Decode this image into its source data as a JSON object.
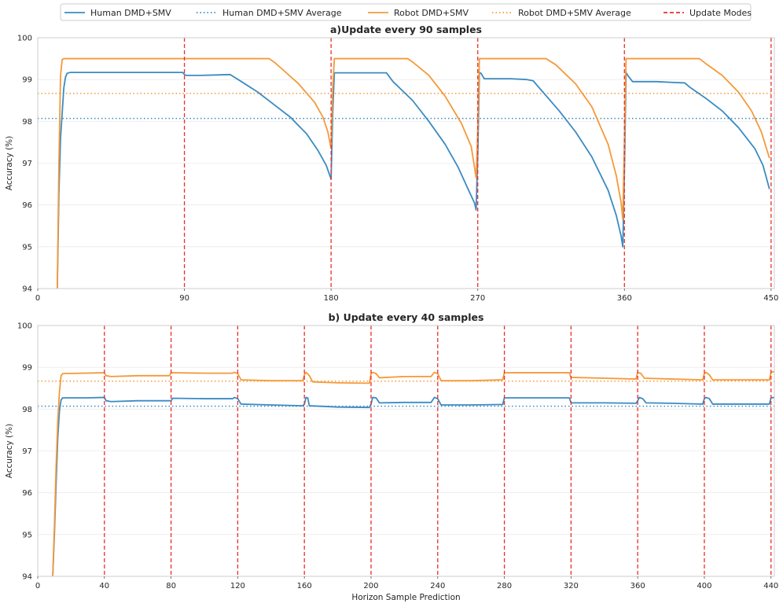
{
  "legend": [
    {
      "label": "Human DMD+SMV",
      "color": "#3b8bc2",
      "style": "solid"
    },
    {
      "label": "Human DMD+SMV Average",
      "color": "#3b8bc2",
      "style": "dotted"
    },
    {
      "label": "Robot DMD+SMV",
      "color": "#f5993a",
      "style": "solid"
    },
    {
      "label": "Robot DMD+SMV Average",
      "color": "#f5993a",
      "style": "dotted"
    },
    {
      "label": "Update Modes",
      "color": "#e8302a",
      "style": "dashed"
    }
  ],
  "chart_data": [
    {
      "type": "line",
      "title": "a)Update every 90 samples",
      "xlabel": "",
      "ylabel": "Accuracy (%)",
      "xlim": [
        0,
        452
      ],
      "ylim": [
        94,
        100
      ],
      "xticks": [
        0,
        90,
        180,
        270,
        360,
        450
      ],
      "yticks": [
        94,
        95,
        96,
        97,
        98,
        99,
        100
      ],
      "grid": "horizontal",
      "update_modes": [
        90,
        180,
        270,
        360,
        450
      ],
      "averages": {
        "human": 98.07,
        "robot": 98.67
      },
      "series": [
        {
          "name": "Human DMD+SMV",
          "points": [
            [
              12,
              94.0
            ],
            [
              13,
              96.3
            ],
            [
              14,
              97.6
            ],
            [
              15,
              98.2
            ],
            [
              16,
              98.8
            ],
            [
              17,
              99.05
            ],
            [
              18,
              99.15
            ],
            [
              20,
              99.17
            ],
            [
              50,
              99.17
            ],
            [
              89,
              99.17
            ],
            [
              90,
              99.12
            ],
            [
              91,
              99.1
            ],
            [
              100,
              99.1
            ],
            [
              110,
              99.11
            ],
            [
              118,
              99.12
            ],
            [
              125,
              98.95
            ],
            [
              135,
              98.7
            ],
            [
              145,
              98.4
            ],
            [
              155,
              98.1
            ],
            [
              165,
              97.7
            ],
            [
              172,
              97.3
            ],
            [
              177,
              96.95
            ],
            [
              180,
              96.62
            ],
            [
              181,
              98.2
            ],
            [
              182,
              99.16
            ],
            [
              200,
              99.16
            ],
            [
              214,
              99.16
            ],
            [
              218,
              98.95
            ],
            [
              230,
              98.5
            ],
            [
              240,
              98.0
            ],
            [
              250,
              97.45
            ],
            [
              258,
              96.9
            ],
            [
              265,
              96.3
            ],
            [
              268,
              96.05
            ],
            [
              269,
              95.88
            ],
            [
              270,
              97.2
            ],
            [
              271,
              99.17
            ],
            [
              272,
              99.15
            ],
            [
              274,
              99.02
            ],
            [
              290,
              99.02
            ],
            [
              300,
              99.0
            ],
            [
              304,
              98.97
            ],
            [
              310,
              98.7
            ],
            [
              320,
              98.25
            ],
            [
              330,
              97.75
            ],
            [
              340,
              97.15
            ],
            [
              350,
              96.35
            ],
            [
              355,
              95.75
            ],
            [
              358,
              95.25
            ],
            [
              359,
              95.0
            ],
            [
              360,
              96.8
            ],
            [
              361,
              99.17
            ],
            [
              362,
              99.1
            ],
            [
              365,
              98.95
            ],
            [
              380,
              98.95
            ],
            [
              390,
              98.93
            ],
            [
              397,
              98.92
            ],
            [
              400,
              98.82
            ],
            [
              410,
              98.55
            ],
            [
              420,
              98.25
            ],
            [
              430,
              97.85
            ],
            [
              440,
              97.35
            ],
            [
              445,
              96.95
            ],
            [
              449,
              96.38
            ]
          ]
        },
        {
          "name": "Robot DMD+SMV",
          "points": [
            [
              12,
              94.0
            ],
            [
              13,
              97.0
            ],
            [
              14,
              99.1
            ],
            [
              15,
              99.48
            ],
            [
              16,
              99.5
            ],
            [
              50,
              99.5
            ],
            [
              100,
              99.5
            ],
            [
              142,
              99.5
            ],
            [
              145,
              99.42
            ],
            [
              150,
              99.25
            ],
            [
              160,
              98.9
            ],
            [
              170,
              98.45
            ],
            [
              175,
              98.1
            ],
            [
              178,
              97.75
            ],
            [
              180,
              97.35
            ],
            [
              181,
              98.8
            ],
            [
              182,
              99.5
            ],
            [
              200,
              99.5
            ],
            [
              227,
              99.5
            ],
            [
              230,
              99.42
            ],
            [
              240,
              99.1
            ],
            [
              250,
              98.6
            ],
            [
              260,
              97.95
            ],
            [
              266,
              97.4
            ],
            [
              269,
              96.65
            ],
            [
              270,
              97.8
            ],
            [
              271,
              99.5
            ],
            [
              300,
              99.5
            ],
            [
              312,
              99.5
            ],
            [
              318,
              99.35
            ],
            [
              330,
              98.9
            ],
            [
              340,
              98.35
            ],
            [
              350,
              97.45
            ],
            [
              355,
              96.7
            ],
            [
              358,
              96.05
            ],
            [
              359,
              95.65
            ],
            [
              360,
              97.5
            ],
            [
              361,
              99.5
            ],
            [
              400,
              99.5
            ],
            [
              406,
              99.5
            ],
            [
              410,
              99.38
            ],
            [
              420,
              99.1
            ],
            [
              430,
              98.7
            ],
            [
              438,
              98.25
            ],
            [
              444,
              97.75
            ],
            [
              449,
              97.12
            ]
          ]
        }
      ]
    },
    {
      "type": "line",
      "title": "b) Update every 40 samples",
      "xlabel": "Horizon Sample Prediction",
      "ylabel": "Accuracy (%)",
      "xlim": [
        0,
        442
      ],
      "ylim": [
        94,
        100
      ],
      "xticks": [
        0,
        40,
        80,
        120,
        160,
        200,
        240,
        280,
        320,
        360,
        400,
        440
      ],
      "yticks": [
        94,
        95,
        96,
        97,
        98,
        99,
        100
      ],
      "grid": "horizontal",
      "update_modes": [
        40,
        80,
        120,
        160,
        200,
        240,
        280,
        320,
        360,
        400,
        440
      ],
      "averages": {
        "human": 98.07,
        "robot": 98.67
      },
      "series": [
        {
          "name": "Human DMD+SMV",
          "points": [
            [
              9,
              94.0
            ],
            [
              10,
              95.0
            ],
            [
              11,
              96.2
            ],
            [
              12,
              97.3
            ],
            [
              13,
              97.95
            ],
            [
              14,
              98.22
            ],
            [
              15,
              98.27
            ],
            [
              20,
              98.27
            ],
            [
              30,
              98.27
            ],
            [
              40,
              98.28
            ],
            [
              41,
              98.2
            ],
            [
              44,
              98.18
            ],
            [
              60,
              98.2
            ],
            [
              80,
              98.2
            ],
            [
              81,
              98.26
            ],
            [
              100,
              98.25
            ],
            [
              117,
              98.25
            ],
            [
              118,
              98.28
            ],
            [
              120,
              98.25
            ],
            [
              122,
              98.12
            ],
            [
              140,
              98.1
            ],
            [
              159,
              98.08
            ],
            [
              160,
              98.12
            ],
            [
              161,
              98.28
            ],
            [
              162,
              98.27
            ],
            [
              163,
              98.08
            ],
            [
              180,
              98.05
            ],
            [
              199,
              98.04
            ],
            [
              200,
              98.12
            ],
            [
              201,
              98.28
            ],
            [
              203,
              98.27
            ],
            [
              205,
              98.15
            ],
            [
              220,
              98.16
            ],
            [
              236,
              98.16
            ],
            [
              238,
              98.28
            ],
            [
              240,
              98.25
            ],
            [
              242,
              98.1
            ],
            [
              260,
              98.1
            ],
            [
              279,
              98.11
            ],
            [
              280,
              98.27
            ],
            [
              300,
              98.27
            ],
            [
              319,
              98.27
            ],
            [
              320,
              98.15
            ],
            [
              340,
              98.15
            ],
            [
              359,
              98.14
            ],
            [
              360,
              98.2
            ],
            [
              361,
              98.28
            ],
            [
              363,
              98.25
            ],
            [
              365,
              98.15
            ],
            [
              380,
              98.14
            ],
            [
              399,
              98.12
            ],
            [
              400,
              98.25
            ],
            [
              401,
              98.28
            ],
            [
              403,
              98.25
            ],
            [
              405,
              98.12
            ],
            [
              420,
              98.12
            ],
            [
              439,
              98.12
            ],
            [
              440,
              98.27
            ],
            [
              442,
              98.28
            ]
          ]
        },
        {
          "name": "Robot DMD+SMV",
          "points": [
            [
              9,
              94.0
            ],
            [
              10,
              95.2
            ],
            [
              11,
              96.6
            ],
            [
              12,
              97.7
            ],
            [
              13,
              98.4
            ],
            [
              14,
              98.8
            ],
            [
              15,
              98.85
            ],
            [
              40,
              98.87
            ],
            [
              41,
              98.8
            ],
            [
              44,
              98.78
            ],
            [
              60,
              98.8
            ],
            [
              79,
              98.8
            ],
            [
              80,
              98.87
            ],
            [
              100,
              98.86
            ],
            [
              117,
              98.86
            ],
            [
              118,
              98.88
            ],
            [
              120,
              98.85
            ],
            [
              122,
              98.7
            ],
            [
              140,
              98.68
            ],
            [
              159,
              98.68
            ],
            [
              160,
              98.82
            ],
            [
              161,
              98.88
            ],
            [
              163,
              98.8
            ],
            [
              165,
              98.65
            ],
            [
              180,
              98.63
            ],
            [
              199,
              98.62
            ],
            [
              200,
              98.85
            ],
            [
              201,
              98.88
            ],
            [
              203,
              98.85
            ],
            [
              205,
              98.75
            ],
            [
              220,
              98.78
            ],
            [
              236,
              98.78
            ],
            [
              238,
              98.88
            ],
            [
              240,
              98.85
            ],
            [
              242,
              98.68
            ],
            [
              260,
              98.68
            ],
            [
              279,
              98.7
            ],
            [
              280,
              98.87
            ],
            [
              300,
              98.87
            ],
            [
              319,
              98.87
            ],
            [
              320,
              98.76
            ],
            [
              340,
              98.74
            ],
            [
              359,
              98.72
            ],
            [
              360,
              98.88
            ],
            [
              362,
              98.85
            ],
            [
              364,
              98.74
            ],
            [
              380,
              98.72
            ],
            [
              399,
              98.7
            ],
            [
              400,
              98.85
            ],
            [
              401,
              98.88
            ],
            [
              403,
              98.82
            ],
            [
              405,
              98.7
            ],
            [
              420,
              98.7
            ],
            [
              439,
              98.7
            ],
            [
              440,
              98.88
            ],
            [
              442,
              98.9
            ]
          ]
        }
      ]
    }
  ]
}
